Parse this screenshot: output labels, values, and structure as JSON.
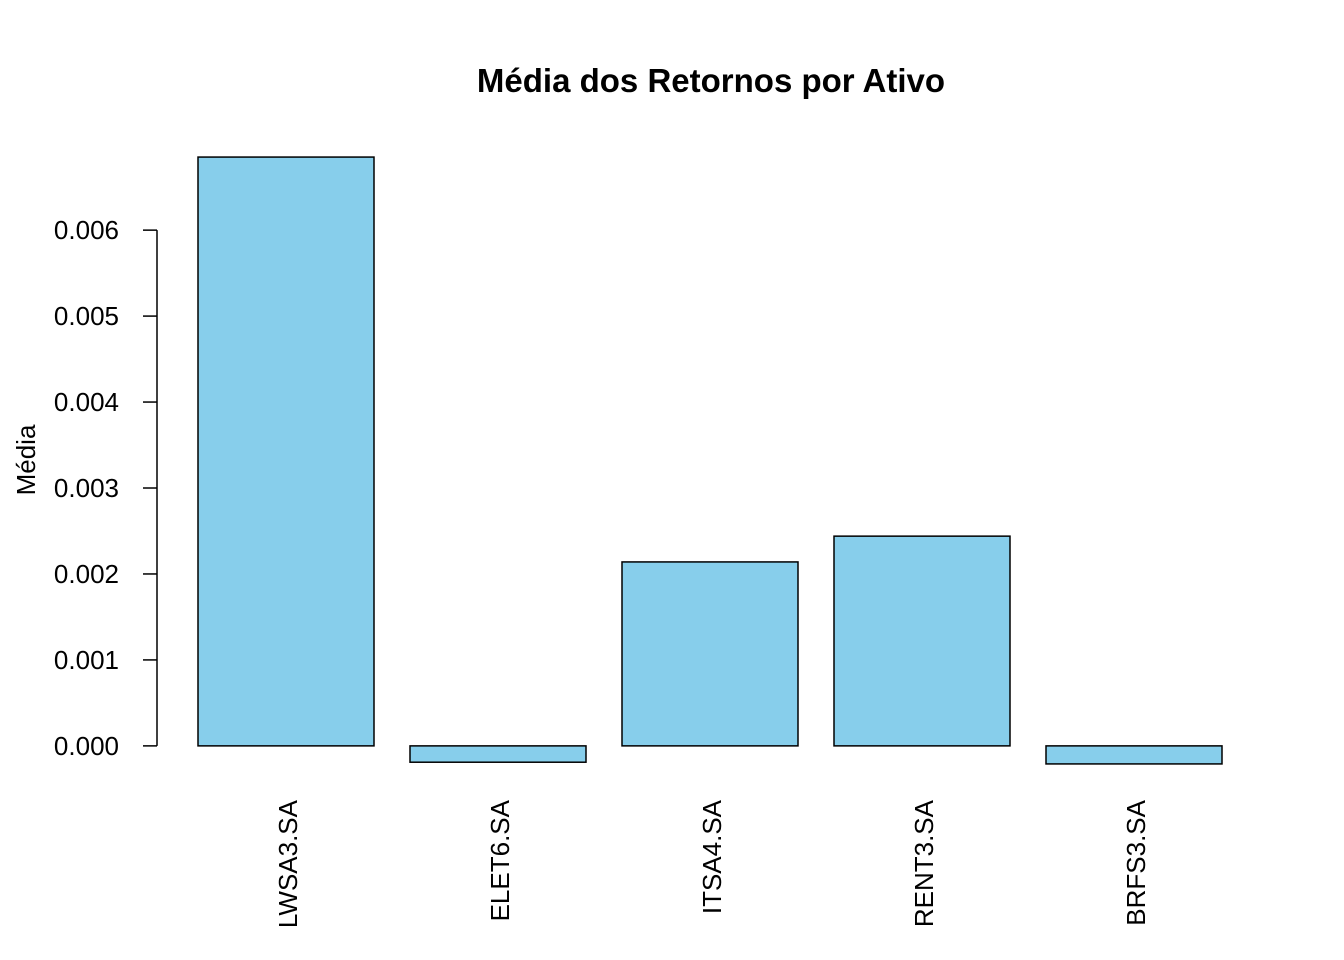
{
  "chart_data": {
    "type": "bar",
    "title": "Média dos Retornos por Ativo",
    "y_label": "Média",
    "categories": [
      "LWSA3.SA",
      "ELET6.SA",
      "ITSA4.SA",
      "RENT3.SA",
      "BRFS3.SA"
    ],
    "values": [
      0.00685,
      -0.00019,
      0.00214,
      0.00244,
      -0.00021
    ],
    "color": "#87ceeb",
    "ylim": [
      -0.00049,
      0.00713
    ],
    "yticks": [
      {
        "value": 0,
        "label": "0.000"
      },
      {
        "value": 0.001,
        "label": "0.001"
      },
      {
        "value": 0.002,
        "label": "0.002"
      },
      {
        "value": 0.003,
        "label": "0.003"
      },
      {
        "value": 0.004,
        "label": "0.004"
      },
      {
        "value": 0.005,
        "label": "0.005"
      },
      {
        "value": 0.006,
        "label": "0.006"
      }
    ]
  }
}
